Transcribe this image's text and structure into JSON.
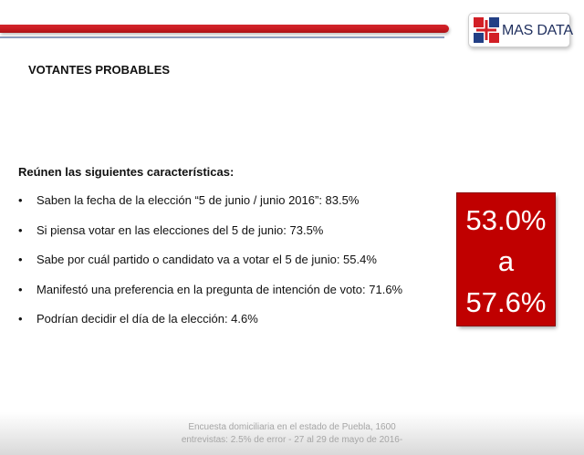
{
  "brand": {
    "name": "MAS DATA",
    "primary_color": "#c00000",
    "secondary_color": "#1f2f5e"
  },
  "title": "VOTANTES PROBABLES",
  "intro": "Reúnen las siguientes características:",
  "bullet_symbol": "•",
  "bullets": [
    "Saben la fecha de la elección “5 de junio / junio 2016”: 83.5%",
    "Si piensa votar en las elecciones del 5 de junio: 73.5%",
    "Sabe por cuál partido o candidato va a votar el 5 de junio: 55.4%",
    "Manifestó una preferencia en la pregunta de intención de voto: 71.6%",
    "Podrían decidir el día de la elección: 4.6%"
  ],
  "range": {
    "low": "53.0%",
    "connector": "a",
    "high": "57.6%"
  },
  "footer": {
    "line1": "Encuesta domiciliaria en el estado de Puebla, 1600",
    "line2": "entrevistas: 2.5% de error - 27 al 29 de mayo de 2016-"
  }
}
